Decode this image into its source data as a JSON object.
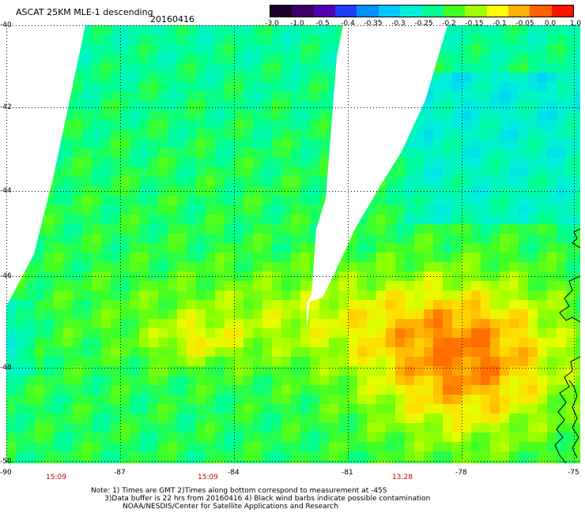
{
  "header": {
    "title": "ASCAT 25KM MLE-1 descending",
    "date": "20160416"
  },
  "colorbar": {
    "labels": [
      "-3.0",
      "-1.0",
      "-0.5",
      "-0.4",
      "-0.35",
      "-0.3",
      "-0.25",
      "-0.2",
      "-0.15",
      "-0.1",
      "-0.05",
      "0.0",
      "1.0"
    ],
    "colors": [
      "#1a0026",
      "#3a0066",
      "#5000b0",
      "#1e3cff",
      "#0090ff",
      "#00c8ff",
      "#00f0d8",
      "#00ff90",
      "#40ff20",
      "#a0ff00",
      "#ffff00",
      "#ffb000",
      "#ff6000",
      "#ff1000"
    ]
  },
  "map": {
    "lat_labels": [
      "-40",
      "-42",
      "-44",
      "-46",
      "-48",
      "-50"
    ],
    "lon_labels": [
      "-90",
      "-87",
      "-84",
      "-81",
      "-78",
      "-75"
    ],
    "time_labels": [
      "15:09",
      "15:09",
      "13:28"
    ]
  },
  "notes": {
    "line1": "Note: 1) Times are GMT 2)Times along bottom correspond to measurement at -45S",
    "line2": "3)Data buffer is 22 hrs from 20160416 4) Black wind barbs indicate possible contamination",
    "line3": "NOAA/NESDIS/Center for Satellite Applications and Research"
  }
}
